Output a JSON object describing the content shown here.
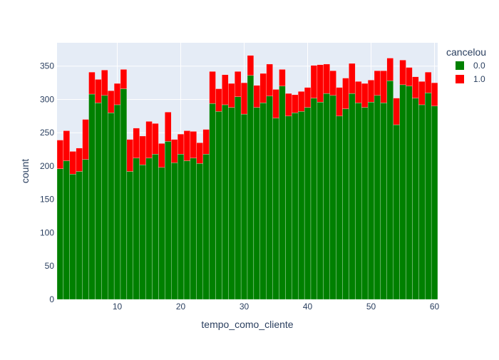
{
  "chart_data": {
    "type": "bar",
    "barmode": "stack",
    "xlabel": "tempo_como_cliente",
    "ylabel": "count",
    "xlim": [
      0.5,
      60.5
    ],
    "ylim": [
      0,
      385
    ],
    "x_ticks": [
      10,
      20,
      30,
      40,
      50,
      60
    ],
    "y_ticks": [
      0,
      50,
      100,
      150,
      200,
      250,
      300,
      350
    ],
    "grid": true,
    "legend": {
      "title": "cancelou",
      "placement": "top-right"
    },
    "x": [
      1,
      2,
      3,
      4,
      5,
      6,
      7,
      8,
      9,
      10,
      11,
      12,
      13,
      14,
      15,
      16,
      17,
      18,
      19,
      20,
      21,
      22,
      23,
      24,
      25,
      26,
      27,
      28,
      29,
      30,
      31,
      32,
      33,
      34,
      35,
      36,
      37,
      38,
      39,
      40,
      41,
      42,
      43,
      44,
      45,
      46,
      47,
      48,
      49,
      50,
      51,
      52,
      53,
      54,
      55,
      56,
      57,
      58,
      59,
      60
    ],
    "series": [
      {
        "name": "0.0",
        "color": "#008000",
        "values": [
          196,
          208,
          188,
          192,
          210,
          308,
          295,
          306,
          280,
          292,
          316,
          192,
          212,
          202,
          212,
          218,
          198,
          237,
          205,
          218,
          208,
          212,
          204,
          218,
          294,
          282,
          292,
          288,
          304,
          278,
          336,
          288,
          295,
          305,
          272,
          320,
          275,
          280,
          282,
          288,
          302,
          296,
          309,
          306,
          275,
          286,
          309,
          295,
          288,
          296,
          306,
          295,
          328,
          262,
          322,
          320,
          302,
          292,
          310,
          290
        ]
      },
      {
        "name": "1.0",
        "color": "#ff0000",
        "values": [
          43,
          45,
          34,
          35,
          60,
          33,
          35,
          38,
          33,
          32,
          29,
          48,
          45,
          43,
          55,
          46,
          36,
          44,
          35,
          30,
          45,
          40,
          31,
          37,
          48,
          34,
          45,
          36,
          38,
          47,
          30,
          33,
          44,
          48,
          43,
          25,
          34,
          27,
          30,
          30,
          49,
          56,
          44,
          37,
          43,
          46,
          45,
          32,
          36,
          33,
          37,
          48,
          34,
          40,
          37,
          28,
          32,
          35,
          31,
          35
        ]
      }
    ]
  }
}
